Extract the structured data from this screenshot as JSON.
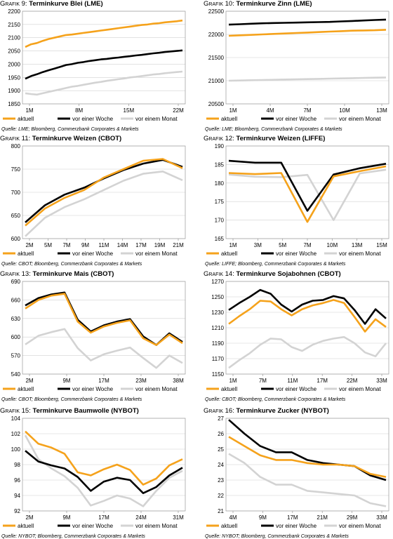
{
  "colors": {
    "aktuell": "#f5a21b",
    "woche": "#000000",
    "monat": "#d3d3d3"
  },
  "chart_data": [
    {
      "type": "line",
      "number": "Grafik 9:",
      "title": "Terminkurve Blei (LME)",
      "source": "Quelle: LME; Bloomberg, Commerzbank Corporates & Markets",
      "x_labels": [
        "1M",
        "8M",
        "15M",
        "22M"
      ],
      "ylim": [
        1850,
        2200
      ],
      "yticks": [
        1850,
        1900,
        1950,
        2000,
        2050,
        2100,
        2150,
        2200
      ],
      "legend": [
        "aktuell",
        "vor einer Woche",
        "vor einem Monat"
      ],
      "series": [
        {
          "name": "aktuell",
          "values": [
            2065,
            2075,
            2080,
            2088,
            2095,
            2100,
            2105,
            2110,
            2112,
            2115,
            2118,
            2121,
            2124,
            2127,
            2130,
            2133,
            2136,
            2139,
            2142,
            2145,
            2148,
            2150,
            2153,
            2155,
            2158,
            2160,
            2162,
            2165
          ]
        },
        {
          "name": "vor einer Woche",
          "values": [
            1945,
            1955,
            1962,
            1970,
            1977,
            1983,
            1990,
            1997,
            2000,
            2005,
            2008,
            2012,
            2015,
            2018,
            2020,
            2023,
            2025,
            2028,
            2030,
            2033,
            2035,
            2038,
            2041,
            2043,
            2046,
            2048,
            2050,
            2052
          ]
        },
        {
          "name": "vor einem Monat",
          "values": [
            1890,
            1887,
            1885,
            1890,
            1895,
            1900,
            1905,
            1910,
            1915,
            1918,
            1922,
            1926,
            1930,
            1933,
            1937,
            1940,
            1943,
            1946,
            1950,
            1952,
            1955,
            1958,
            1961,
            1963,
            1966,
            1968,
            1970,
            1972
          ]
        }
      ]
    },
    {
      "type": "line",
      "number": "Grafik 10:",
      "title": "Terminkurve Zinn (LME)",
      "source": "Quelle: LME; Bloomberg, Commerzbank Corporates & Markets",
      "x_labels": [
        "1M",
        "4M",
        "7M",
        "10M",
        "13M"
      ],
      "ylim": [
        20500,
        22500
      ],
      "yticks": [
        20500,
        21000,
        21500,
        22000,
        22500
      ],
      "legend": [
        "aktuell",
        "vor einer Woche",
        "vor einem Monat"
      ],
      "series": [
        {
          "name": "aktuell",
          "values": [
            21970,
            21980,
            21990,
            22000,
            22010,
            22020,
            22030,
            22040,
            22050,
            22060,
            22070,
            22080,
            22085,
            22090,
            22100
          ]
        },
        {
          "name": "vor einer Woche",
          "values": [
            22210,
            22220,
            22230,
            22240,
            22245,
            22250,
            22255,
            22260,
            22265,
            22270,
            22280,
            22290,
            22300,
            22310,
            22320
          ]
        },
        {
          "name": "vor einem Monat",
          "values": [
            21000,
            21005,
            21010,
            21015,
            21020,
            21025,
            21030,
            21035,
            21040,
            21045,
            21050,
            21055,
            21060,
            21065,
            21070
          ]
        }
      ]
    },
    {
      "type": "line",
      "number": "Grafik 11:",
      "title": "Terminkurve Weizen (CBOT)",
      "source": "Quelle: CBOT; Bloomberg, Commerzbank Corporates & Markets",
      "x_labels": [
        "2M",
        "5M",
        "7M",
        "9M",
        "11M",
        "14M",
        "17M",
        "19M",
        "21M"
      ],
      "ylim": [
        600,
        800
      ],
      "yticks": [
        600,
        650,
        700,
        750,
        800
      ],
      "legend": [
        "aktuell",
        "vor einer Woche",
        "vor einem Monat"
      ],
      "series": [
        {
          "name": "aktuell",
          "values": [
            628,
            665,
            688,
            705,
            732,
            750,
            768,
            772,
            752
          ]
        },
        {
          "name": "vor einer Woche",
          "values": [
            635,
            672,
            695,
            710,
            730,
            748,
            762,
            770,
            755
          ]
        },
        {
          "name": "vor einem Monat",
          "values": [
            605,
            645,
            668,
            685,
            705,
            725,
            740,
            745,
            726
          ]
        }
      ]
    },
    {
      "type": "line",
      "number": "Grafik 12:",
      "title": "Terminkurve Weizen (LIFFE)",
      "source": "Quelle: LIFFE; Bloomberg, Commerzbank Corporates & Markets",
      "x_labels": [
        "1M",
        "3M",
        "5M",
        "7M",
        "10M",
        "13M",
        "15M"
      ],
      "ylim": [
        165,
        190
      ],
      "yticks": [
        165,
        170,
        175,
        180,
        185,
        190
      ],
      "legend": [
        "aktuell",
        "vor einer Woche",
        "vor einem Monat"
      ],
      "series": [
        {
          "name": "aktuell",
          "values": [
            182.7,
            182.4,
            182.7,
            169.5,
            181.8,
            183.2,
            184.5
          ]
        },
        {
          "name": "vor einer Woche",
          "values": [
            186,
            185.5,
            185.5,
            172.5,
            182.3,
            184.0,
            185.2
          ]
        },
        {
          "name": "vor einem Monat",
          "values": [
            182.3,
            181.7,
            181.6,
            182.2,
            170.0,
            182.6,
            183.6
          ]
        }
      ]
    },
    {
      "type": "line",
      "number": "Grafik 13:",
      "title": "Terminkurve Mais (CBOT)",
      "source": "Quelle: CBOT; Bloomberg, Commerzbank Corporates & Markets",
      "x_labels": [
        "2M",
        "9M",
        "17M",
        "23M",
        "38M"
      ],
      "ylim": [
        540,
        690
      ],
      "yticks": [
        540,
        570,
        600,
        630,
        660,
        690
      ],
      "legend": [
        "aktuell",
        "vor einer Woche",
        "vor einem Monat"
      ],
      "series": [
        {
          "name": "aktuell",
          "values": [
            646,
            660,
            667,
            670,
            625,
            607,
            617,
            623,
            627,
            598,
            587,
            604,
            590
          ]
        },
        {
          "name": "vor einer Woche",
          "values": [
            651,
            663,
            669,
            672,
            628,
            609,
            619,
            625,
            629,
            601,
            587,
            606,
            592
          ]
        },
        {
          "name": "vor einem Monat",
          "values": [
            588,
            602,
            608,
            613,
            582,
            562,
            572,
            578,
            583,
            566,
            550,
            570,
            558
          ]
        }
      ]
    },
    {
      "type": "line",
      "number": "Grafik 14:",
      "title": "Terminkurve Sojabohnen (CBOT)",
      "source": "Quelle: CBOT; Bloomberg, Commerzbank Corporates & Markets",
      "x_labels": [
        "1M",
        "7M",
        "11M",
        "17M",
        "22M",
        "33M"
      ],
      "ylim": [
        1150,
        1270
      ],
      "yticks": [
        1150,
        1170,
        1190,
        1210,
        1230,
        1250,
        1270
      ],
      "legend": [
        "aktuell",
        "vor einer Woche",
        "vor einem Monat"
      ],
      "series": [
        {
          "name": "aktuell",
          "values": [
            1215,
            1225,
            1234,
            1245,
            1244,
            1234,
            1226,
            1234,
            1239,
            1242,
            1246,
            1242,
            1224,
            1205,
            1221,
            1211
          ]
        },
        {
          "name": "vor einer Woche",
          "values": [
            1233,
            1242,
            1250,
            1259,
            1254,
            1240,
            1231,
            1240,
            1245,
            1246,
            1251,
            1248,
            1233,
            1215,
            1234,
            1222
          ]
        },
        {
          "name": "vor einem Monat",
          "values": [
            1158,
            1168,
            1177,
            1188,
            1196,
            1195,
            1185,
            1180,
            1188,
            1193,
            1196,
            1198,
            1190,
            1178,
            1173,
            1190
          ]
        }
      ]
    },
    {
      "type": "line",
      "number": "Grafik 15:",
      "title": "Terminkurve Baumwolle (NYBOT)",
      "source": "Quelle: NYBOT; Bloomberg, Commerzbank Corporates & Markets",
      "x_labels": [
        "2M",
        "9M",
        "17M",
        "24M",
        "31M"
      ],
      "ylim": [
        92,
        104
      ],
      "yticks": [
        92,
        94,
        96,
        98,
        100,
        102,
        104
      ],
      "legend": [
        "aktuell",
        "vor einer Woche",
        "vor einem Monat"
      ],
      "series": [
        {
          "name": "aktuell",
          "values": [
            102.3,
            100.7,
            100.2,
            99.4,
            97.0,
            96.6,
            97.4,
            98.0,
            97.3,
            95.4,
            96.2,
            97.9,
            98.7
          ]
        },
        {
          "name": "vor einer Woche",
          "values": [
            99.8,
            98.4,
            97.9,
            97.5,
            96.4,
            94.6,
            95.8,
            96.3,
            96.0,
            94.3,
            95.1,
            96.6,
            97.6
          ]
        },
        {
          "name": "vor einem Monat",
          "values": [
            101.8,
            98.7,
            97.5,
            96.5,
            95.0,
            92.7,
            93.3,
            94.0,
            93.6,
            92.6,
            94.6,
            96.3,
            97.2
          ]
        }
      ]
    },
    {
      "type": "line",
      "number": "Grafik 16:",
      "title": "Terminkurve Zucker (NYBOT)",
      "source": "Quelle: NYBOT; Bloomberg, Commerzbank Corporates & Markets",
      "x_labels": [
        "4M",
        "9M",
        "17M",
        "21M",
        "29M",
        "33M"
      ],
      "ylim": [
        21,
        27
      ],
      "yticks": [
        21,
        22,
        23,
        24,
        25,
        26,
        27
      ],
      "legend": [
        "aktuell",
        "vor einer Woche",
        "vor einem Monat"
      ],
      "series": [
        {
          "name": "aktuell",
          "values": [
            25.8,
            25.2,
            24.6,
            24.3,
            24.3,
            24.1,
            24.0,
            24.0,
            23.9,
            23.4,
            23.2
          ]
        },
        {
          "name": "vor einer Woche",
          "values": [
            26.9,
            26.0,
            25.2,
            24.8,
            24.8,
            24.3,
            24.1,
            24.0,
            23.9,
            23.3,
            23.0
          ]
        },
        {
          "name": "vor einem Monat",
          "values": [
            24.7,
            24.1,
            23.2,
            22.7,
            22.7,
            22.3,
            22.2,
            22.1,
            22.0,
            21.5,
            21.3
          ]
        }
      ]
    }
  ]
}
